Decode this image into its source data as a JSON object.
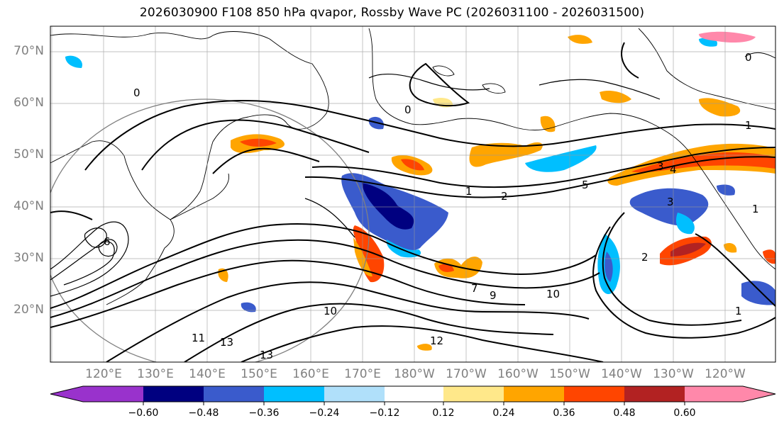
{
  "title": "2026030900 F108 850 hPa qvapor, Rossby Wave PC (2026031100 - 2026031500)",
  "lat_labels": [
    "70°N",
    "60°N",
    "50°N",
    "40°N",
    "30°N",
    "20°N"
  ],
  "lon_labels": [
    "120°E",
    "130°E",
    "140°E",
    "150°E",
    "160°E",
    "170°E",
    "180°W",
    "170°W",
    "160°W",
    "150°W",
    "140°W",
    "130°W",
    "120°W"
  ],
  "contour_labels": [
    "0",
    "0",
    "0",
    "1",
    "1",
    "1",
    "2",
    "2",
    "3",
    "3",
    "4",
    "5",
    "6",
    "7",
    "9",
    "10",
    "10",
    "11",
    "12",
    "13",
    "13",
    "1"
  ],
  "colorbar": {
    "ticks": [
      "−0.60",
      "−0.48",
      "−0.36",
      "−0.24",
      "−0.12",
      "0.12",
      "0.24",
      "0.36",
      "0.48",
      "0.60"
    ],
    "colors": {
      "under": "#9932cc",
      "bins": [
        "#000080",
        "#3a5bcc",
        "#00bfff",
        "#b0e0fa",
        "#ffffff",
        "#ffe88a",
        "#ffa500",
        "#ff4500",
        "#b22222"
      ],
      "over": "#ff88aa"
    }
  }
}
